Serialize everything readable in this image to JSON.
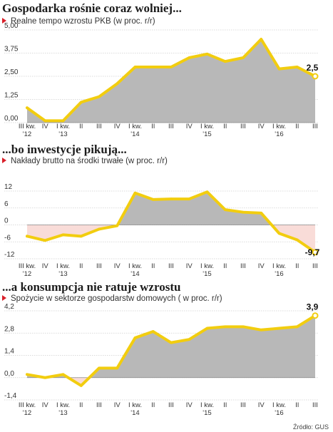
{
  "categories": [
    "III kw.\n'12",
    "IV",
    "I kw.\n'13",
    "II",
    "III",
    "IV",
    "I kw.\n'14",
    "II",
    "III",
    "IV",
    "I kw.\n'15",
    "II",
    "III",
    "IV",
    "I kw.\n'16",
    "II",
    "III"
  ],
  "source": "Źródło: GUS",
  "colors": {
    "line": "#f2cd0f",
    "area": "#b8b8b8",
    "negative_area": "#f9dcd8",
    "accent": "#d9202a"
  },
  "chart_data": [
    {
      "type": "area",
      "title": "Gospodarka rośnie coraz wolniej...",
      "subtitle": "Realne tempo wzrostu PKB (w proc. r/r)",
      "ylabel": "",
      "xlabel": "",
      "ylim": [
        0,
        5
      ],
      "yticks": [
        "5,00",
        "3,75",
        "2,50",
        "1,25",
        "0,00"
      ],
      "ytick_values": [
        5,
        3.75,
        2.5,
        1.25,
        0
      ],
      "values": [
        0.8,
        0.1,
        0.1,
        1.1,
        1.4,
        2.1,
        3.0,
        3.0,
        3.0,
        3.5,
        3.7,
        3.3,
        3.5,
        4.5,
        2.9,
        3.0,
        2.5
      ],
      "end_label": "2,5",
      "grid": true
    },
    {
      "type": "area",
      "title": "...bo inwestycje pikują...",
      "subtitle": "Nakłady brutto na środki trwałe (w proc. r/r)",
      "ylabel": "",
      "xlabel": "",
      "ylim": [
        -12,
        12
      ],
      "yticks": [
        "12",
        "6",
        "0",
        "-6",
        "-12"
      ],
      "ytick_values": [
        12,
        6,
        0,
        -6,
        -12
      ],
      "values": [
        -4.0,
        -5.5,
        -3.5,
        -4.0,
        -1.5,
        -0.3,
        11.3,
        9.0,
        9.2,
        9.2,
        11.7,
        5.4,
        4.5,
        4.2,
        -3.0,
        -5.3,
        -9.7
      ],
      "end_label": "-9,7",
      "grid": true
    },
    {
      "type": "area",
      "title": "...a konsumpcja nie ratuje wzrostu",
      "subtitle": "Spożycie w sektorze gospodarstw domowych ( w proc. r/r)",
      "ylabel": "",
      "xlabel": "",
      "ylim": [
        -1.4,
        4.2
      ],
      "yticks": [
        "4,2",
        "2,8",
        "1,4",
        "0,0",
        "-1,4"
      ],
      "ytick_values": [
        4.2,
        2.8,
        1.4,
        0,
        -1.4
      ],
      "values": [
        0.2,
        0.0,
        0.2,
        -0.5,
        0.6,
        0.6,
        2.5,
        2.9,
        2.2,
        2.4,
        3.1,
        3.2,
        3.2,
        3.0,
        3.1,
        3.2,
        3.9
      ],
      "end_label": "3,9",
      "grid": true
    }
  ]
}
